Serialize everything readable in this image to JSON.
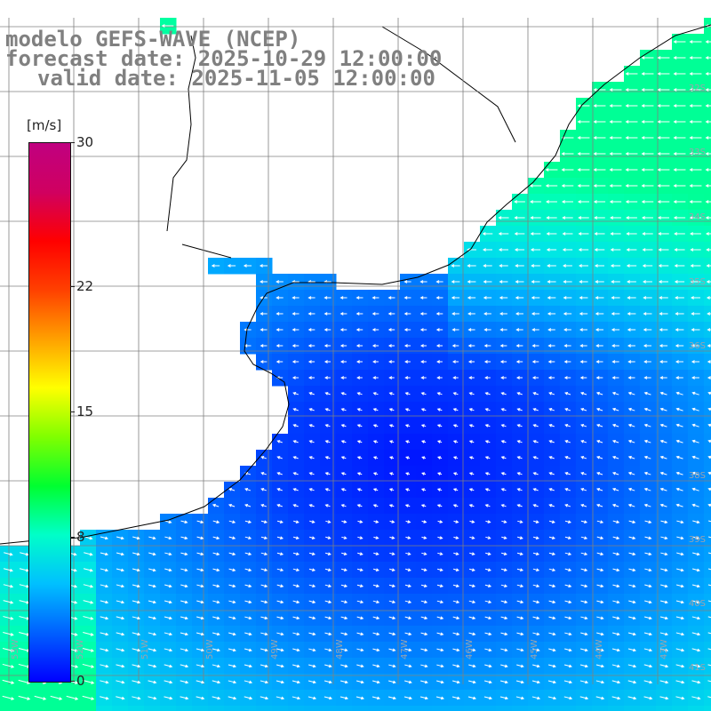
{
  "header": {
    "line1": "modelo GEFS-WAVE (NCEP)",
    "line2": "forecast date: 2025-10-29 12:00:00",
    "line3": "valid date: 2025-11-05 12:00:00"
  },
  "colorbar": {
    "unit": "[m/s]",
    "ticks": [
      {
        "label": "30",
        "value": 30
      },
      {
        "label": "22",
        "value": 22
      },
      {
        "label": "15",
        "value": 15
      },
      {
        "label": "8",
        "value": 8
      },
      {
        "label": "0",
        "value": 0
      }
    ],
    "colors": [
      "#0000ff",
      "#0060ff",
      "#00c0ff",
      "#00ffc8",
      "#00ff30",
      "#80ff00",
      "#ffff00",
      "#ffa000",
      "#ff4000",
      "#ff0000",
      "#d00060",
      "#c00080"
    ]
  },
  "map_layers": {
    "land": "#ffffff",
    "coastline": "#000000",
    "grid": "#808080",
    "vectors": "#ffffff"
  },
  "lat_labels": [
    "32S",
    "33S",
    "34S",
    "35S",
    "36S",
    "38S",
    "39S",
    "40S",
    "41S"
  ],
  "lon_labels": [
    "53W",
    "52W",
    "51W",
    "50W",
    "49W",
    "48W",
    "47W",
    "46W",
    "45W",
    "44W",
    "43W"
  ]
}
